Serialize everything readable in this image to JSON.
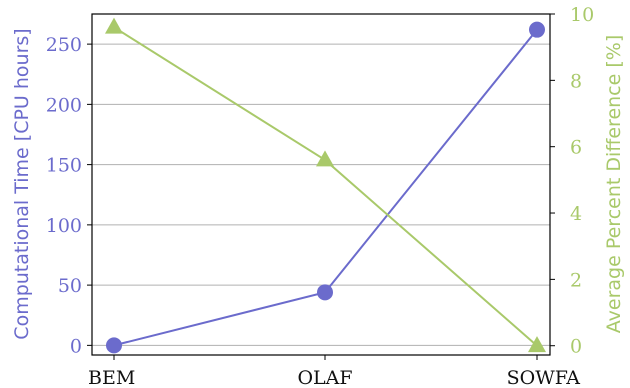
{
  "chart_data": {
    "type": "line",
    "categories": [
      "BEM",
      "OLAF",
      "SOWFA"
    ],
    "series": [
      {
        "name": "",
        "axis": "left",
        "values": [
          0,
          44,
          262
        ],
        "color": "#6b6bcc",
        "marker": "circle"
      },
      {
        "name": "",
        "axis": "right",
        "values": [
          9.6,
          5.6,
          0
        ],
        "color": "#a9c96a",
        "marker": "triangle"
      }
    ],
    "y_left": {
      "label": "Computational Time [CPU hours]",
      "ticks": [
        0,
        50,
        100,
        150,
        200,
        250
      ],
      "ylim": [
        -8,
        275
      ],
      "color": "#6b6bcc"
    },
    "y_right": {
      "label": "Average Percent Difference [%]",
      "ticks": [
        0,
        2,
        4,
        6,
        8,
        10
      ],
      "ylim": [
        -0.28,
        10
      ],
      "color": "#a9c96a"
    },
    "grid": true,
    "colors": {
      "grid": "#b0b0b0",
      "frame": "#000000"
    }
  }
}
